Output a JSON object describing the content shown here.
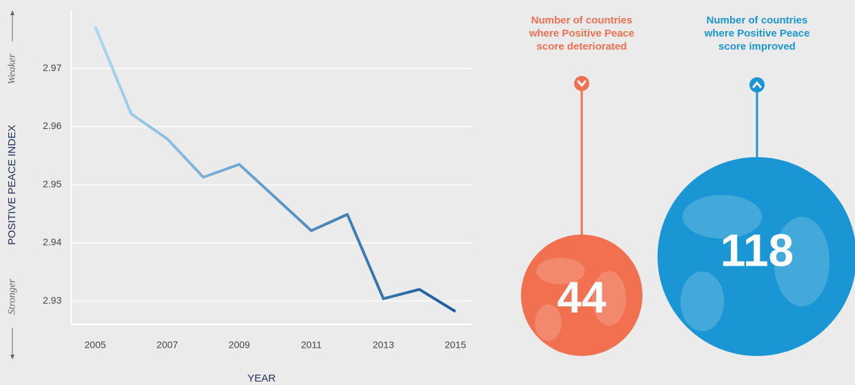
{
  "chart_data": [
    {
      "type": "line",
      "x": [
        2005,
        2006,
        2007,
        2008,
        2009,
        2010,
        2011,
        2012,
        2013,
        2014,
        2015
      ],
      "values": [
        2.9772,
        2.9622,
        2.9579,
        2.9513,
        2.9535,
        2.9478,
        2.9421,
        2.9449,
        2.9304,
        2.932,
        2.9282
      ],
      "color_start": "#a6d8f2",
      "color_end": "#1a5a9c",
      "xlim": [
        2004.33,
        2015.48
      ],
      "xticks": [
        2005,
        2007,
        2009,
        2011,
        2013,
        2015
      ],
      "ylim": [
        2.926,
        2.98
      ],
      "yticks": [
        2.93,
        2.94,
        2.95,
        2.96,
        2.97
      ],
      "grid": true,
      "x_label": "YEAR",
      "y_label": "POSITIVE PEACE INDEX",
      "y_annotations": [
        "Weaker",
        "Stronger"
      ]
    },
    {
      "type": "bubble",
      "categories": [
        "Number of countries where Positive Peace score deteriorated",
        "Number of countries where Positive Peace score improved"
      ],
      "values": [
        44,
        118
      ],
      "colors": [
        "#f07050",
        "#1a96d4"
      ]
    }
  ]
}
